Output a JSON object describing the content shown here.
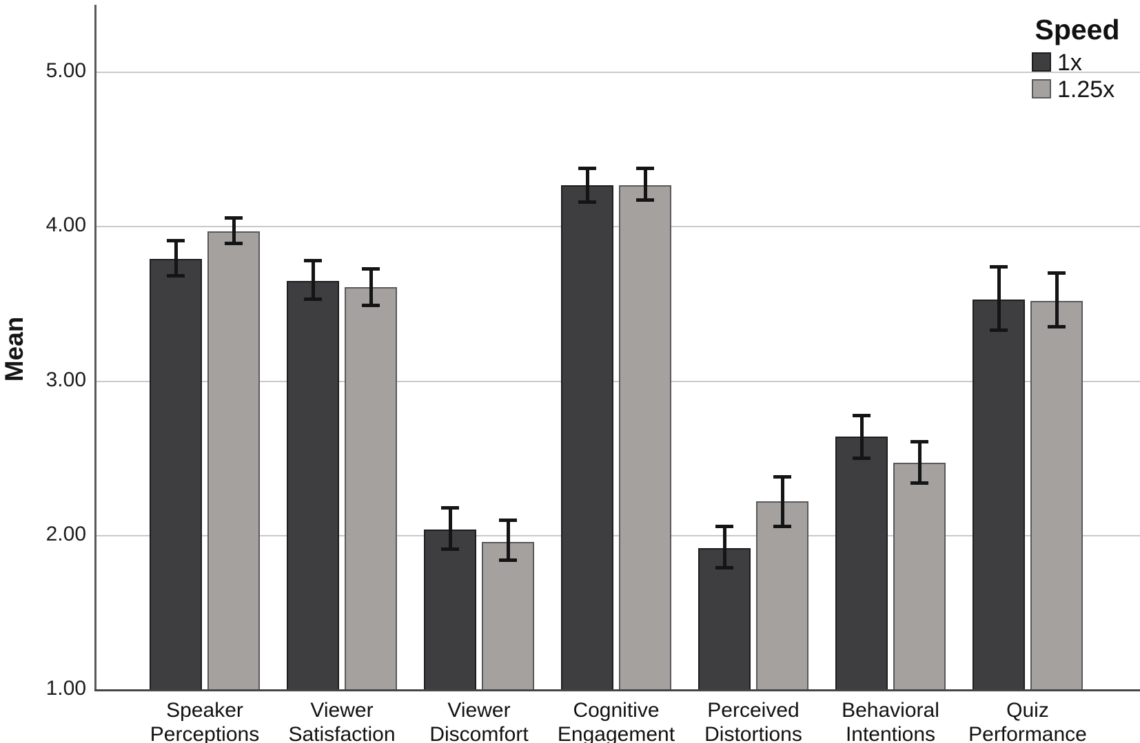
{
  "chart_data": {
    "type": "bar",
    "title": "",
    "xlabel": "",
    "ylabel": "Mean",
    "categories": [
      "Speaker Perceptions",
      "Viewer Satisfaction",
      "Viewer Discomfort",
      "Cognitive Engagement",
      "Perceived Distortions",
      "Behavioral Intentions",
      "Quiz Performance"
    ],
    "series": [
      {
        "name": "1x",
        "color": "#3e3e40",
        "border_color": "#1d1d1f",
        "values": [
          3.79,
          3.65,
          2.04,
          4.27,
          1.92,
          2.64,
          3.53
        ],
        "error_low": [
          3.67,
          3.52,
          1.9,
          4.15,
          1.78,
          2.49,
          3.32
        ],
        "error_high": [
          3.92,
          3.79,
          2.19,
          4.39,
          2.07,
          2.79,
          3.75
        ]
      },
      {
        "name": "1.25x",
        "color": "#a5a19f",
        "border_color": "#59595b",
        "values": [
          3.97,
          3.61,
          1.96,
          4.27,
          2.22,
          2.47,
          3.52
        ],
        "error_low": [
          3.88,
          3.48,
          1.83,
          4.16,
          2.05,
          2.33,
          3.34
        ],
        "error_high": [
          4.07,
          3.74,
          2.11,
          4.39,
          2.39,
          2.62,
          3.71
        ]
      }
    ],
    "error_bars": true,
    "legend": {
      "title": "Speed",
      "position": "top-right"
    },
    "yticks": {
      "labels": [
        "1.00",
        "2.00",
        "3.00",
        "4.00",
        "5.00"
      ],
      "values": [
        1,
        2,
        3,
        4,
        5
      ]
    },
    "gridline_values": [
      2,
      3,
      4,
      5
    ],
    "ylim": [
      1.0,
      5.44
    ],
    "grid": "horizontal",
    "colors": {
      "background": "#ffffff",
      "gridline": "#c9c9c9",
      "axis": "#4c4c4e",
      "error_bar": "#141414",
      "text": "#111111"
    }
  }
}
